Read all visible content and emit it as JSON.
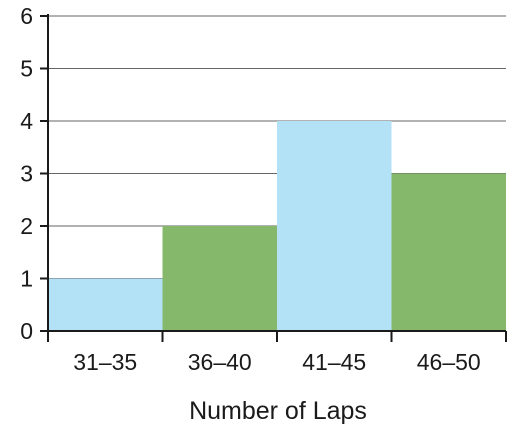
{
  "chart_data": {
    "type": "bar",
    "categories": [
      "31–35",
      "36–40",
      "41–45",
      "46–50"
    ],
    "values": [
      1,
      2,
      4,
      3
    ],
    "bar_colors": [
      "#b3e1f6",
      "#86b86c",
      "#b3e1f6",
      "#86b86c"
    ],
    "title": "",
    "xlabel": "Number of Laps",
    "ylabel": "",
    "ylim": [
      0,
      6
    ],
    "yticks": [
      0,
      1,
      2,
      3,
      4,
      5,
      6
    ],
    "grid": true,
    "gridline_color": "#666666",
    "axis_color": "#1a1a1a"
  }
}
